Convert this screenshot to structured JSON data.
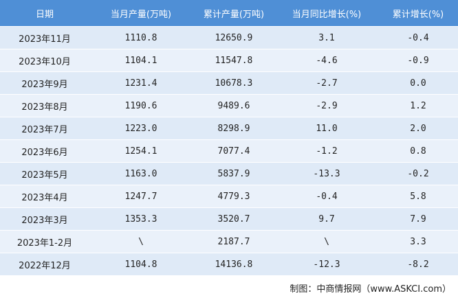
{
  "table": {
    "header": [
      "日期",
      "当月产量(万吨)",
      "累计产量(万吨)",
      "当月同比增长(%)",
      "累计增长(%)"
    ],
    "rows": [
      [
        "2023年11月",
        "1110.8",
        "12650.9",
        "3.1",
        "-0.4"
      ],
      [
        "2023年10月",
        "1104.1",
        "11547.8",
        "-4.6",
        "-0.9"
      ],
      [
        "2023年9月",
        "1231.4",
        "10678.3",
        "-2.7",
        "0.0"
      ],
      [
        "2023年8月",
        "1190.6",
        "9489.6",
        "-2.9",
        "1.2"
      ],
      [
        "2023年7月",
        "1223.0",
        "8298.9",
        "11.0",
        "2.0"
      ],
      [
        "2023年6月",
        "1254.1",
        "7077.4",
        "-1.2",
        "0.8"
      ],
      [
        "2023年5月",
        "1163.0",
        "5837.9",
        "-13.3",
        "-0.2"
      ],
      [
        "2023年4月",
        "1247.7",
        "4779.3",
        "-0.4",
        "5.8"
      ],
      [
        "2023年3月",
        "1353.3",
        "3520.7",
        "9.7",
        "7.9"
      ],
      [
        "2023年1-2月",
        "\\",
        "2187.7",
        "\\",
        "3.3"
      ],
      [
        "2022年12月",
        "1104.8",
        "14136.8",
        "-12.3",
        "-8.2"
      ]
    ]
  },
  "source": "制图：中商情报网（www.ASKCI.com）"
}
